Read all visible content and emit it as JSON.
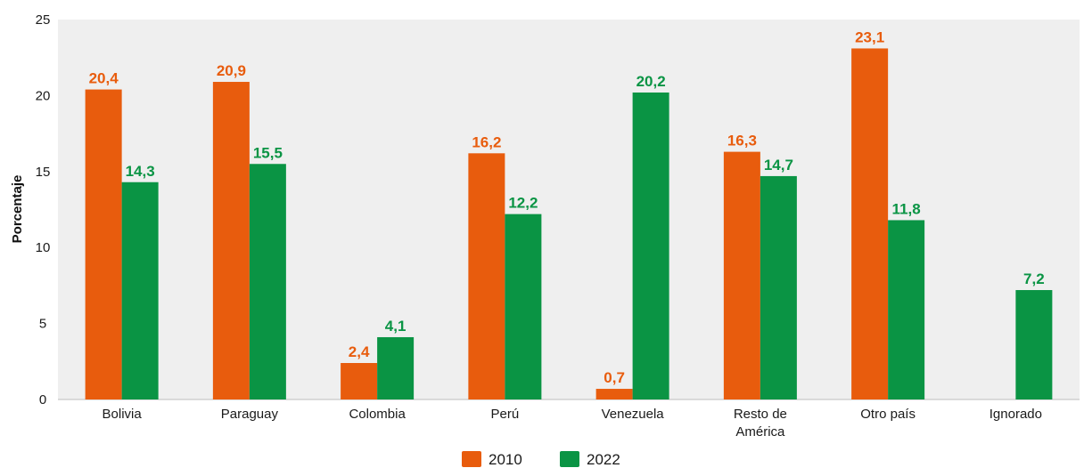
{
  "chart_data": {
    "type": "bar",
    "categories": [
      "Bolivia",
      "Paraguay",
      "Colombia",
      "Perú",
      "Venezuela",
      "Resto de América",
      "Otro país",
      "Ignorado"
    ],
    "category_lines": [
      [
        "Bolivia"
      ],
      [
        "Paraguay"
      ],
      [
        "Colombia"
      ],
      [
        "Perú"
      ],
      [
        "Venezuela"
      ],
      [
        "Resto de",
        "América"
      ],
      [
        "Otro país"
      ],
      [
        "Ignorado"
      ]
    ],
    "series": [
      {
        "name": "2010",
        "color": "#e85c0d",
        "values": [
          20.4,
          20.9,
          2.4,
          16.2,
          0.7,
          16.3,
          23.1,
          null
        ],
        "labels": [
          "20,4",
          "20,9",
          "2,4",
          "16,2",
          "0,7",
          "16,3",
          "23,1",
          null
        ]
      },
      {
        "name": "2022",
        "color": "#0a9444",
        "values": [
          14.3,
          15.5,
          4.1,
          12.2,
          20.2,
          14.7,
          11.8,
          7.2
        ],
        "labels": [
          "14,3",
          "15,5",
          "4,1",
          "12,2",
          "20,2",
          "14,7",
          "11,8",
          "7,2"
        ]
      }
    ],
    "ylabel": "Porcentaje",
    "ylim": [
      0,
      25
    ],
    "yticks": [
      0,
      5,
      10,
      15,
      20,
      25
    ],
    "grid": false,
    "plot_background": "#efefef",
    "legend_position": "bottom-center"
  }
}
